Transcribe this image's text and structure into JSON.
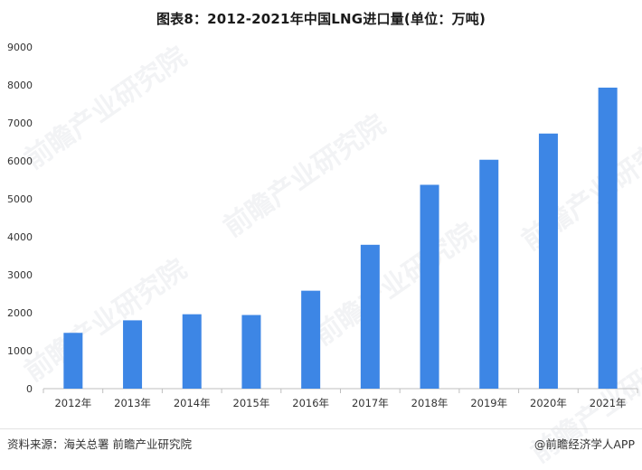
{
  "title": "图表8：2012-2021年中国LNG进口量(单位：万吨)",
  "source_text": "资料来源：海关总署 前瞻产业研究院",
  "brand_text": "@前瞻经济学人APP",
  "watermark_text": "前瞻产业研究院",
  "colors": {
    "bar": "#3d86e5",
    "axis": "#bfbfbf",
    "tick_text": "#333333"
  },
  "chart_data": {
    "type": "bar",
    "title": "图表8：2012-2021年中国LNG进口量(单位：万吨)",
    "categories": [
      "2012年",
      "2013年",
      "2014年",
      "2015年",
      "2016年",
      "2017年",
      "2018年",
      "2019年",
      "2020年",
      "2021年"
    ],
    "values": [
      1470,
      1800,
      1960,
      1940,
      2580,
      3790,
      5370,
      6030,
      6720,
      7930
    ],
    "xlabel": "",
    "ylabel": "",
    "ylim": [
      0,
      9000
    ],
    "yticks": [
      0,
      1000,
      2000,
      3000,
      4000,
      5000,
      6000,
      7000,
      8000,
      9000
    ],
    "grid": false,
    "legend": "none"
  }
}
